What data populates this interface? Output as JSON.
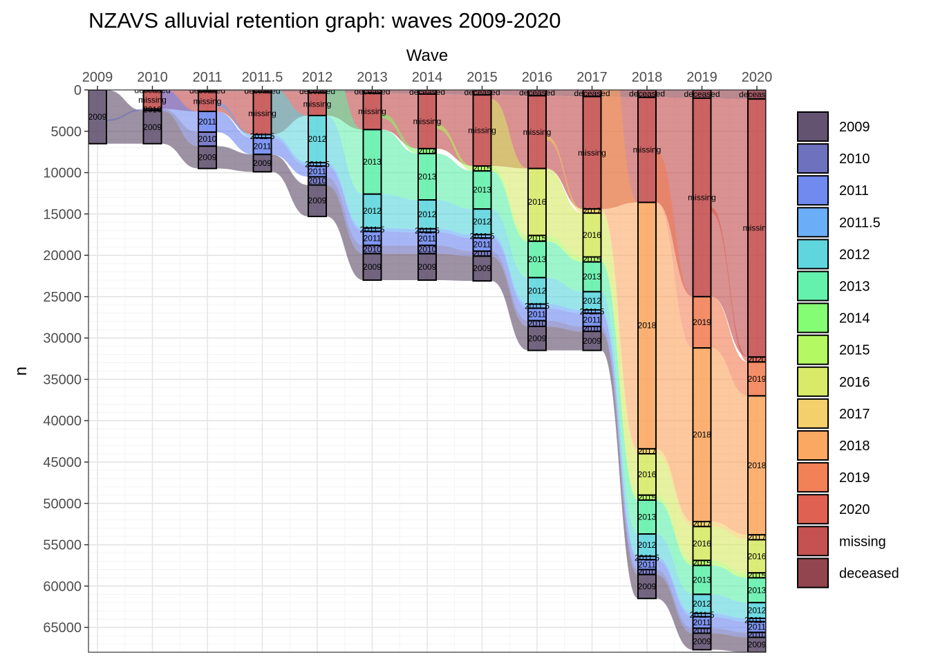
{
  "chart_data": {
    "type": "alluvial",
    "title": "NZAVS alluvial retention graph: waves 2009-2020",
    "xlabel": "Wave",
    "ylabel": "n",
    "x_axis_position": "top",
    "y_reversed": true,
    "ylim": [
      0,
      68000
    ],
    "yticks": [
      0,
      5000,
      10000,
      15000,
      20000,
      25000,
      30000,
      35000,
      40000,
      45000,
      50000,
      55000,
      60000,
      65000
    ],
    "ytick_labels": [
      "0",
      "5000",
      "10000",
      "15000",
      "20000",
      "25000",
      "30000",
      "35000",
      "40000",
      "45000",
      "50000",
      "55000",
      "60000",
      "65000"
    ],
    "grid": true,
    "legend_position": "right",
    "waves": [
      "2009",
      "2010",
      "2011",
      "2011.5",
      "2012",
      "2013",
      "2014",
      "2015",
      "2016",
      "2017",
      "2018",
      "2019",
      "2020"
    ],
    "legend": [
      {
        "name": "2009",
        "color": "#5b4a68"
      },
      {
        "name": "2010",
        "color": "#6569bb"
      },
      {
        "name": "2011",
        "color": "#6984ee"
      },
      {
        "name": "2011.5",
        "color": "#62aaf7"
      },
      {
        "name": "2012",
        "color": "#56d4dc"
      },
      {
        "name": "2013",
        "color": "#5cf0a8"
      },
      {
        "name": "2014",
        "color": "#7dfc6c"
      },
      {
        "name": "2015",
        "color": "#b0f85c"
      },
      {
        "name": "2016",
        "color": "#d6e960"
      },
      {
        "name": "2017",
        "color": "#f2ce63"
      },
      {
        "name": "2018",
        "color": "#fba35b"
      },
      {
        "name": "2019",
        "color": "#f27a4e"
      },
      {
        "name": "2020",
        "color": "#dd5849"
      },
      {
        "name": "missing",
        "color": "#c24848"
      },
      {
        "name": "deceased",
        "color": "#8c3b44"
      }
    ],
    "strata": [
      {
        "wave": "2009",
        "segments": [
          {
            "label": "2009",
            "from": 0,
            "to": 6500
          }
        ]
      },
      {
        "wave": "2010",
        "segments": [
          {
            "label": "deceased",
            "from": 0,
            "to": 100
          },
          {
            "label": "missing",
            "from": 100,
            "to": 2300
          },
          {
            "label": "2010",
            "from": 2300,
            "to": 2500
          },
          {
            "label": "2009",
            "from": 2500,
            "to": 6500
          }
        ]
      },
      {
        "wave": "2011",
        "segments": [
          {
            "label": "deceased",
            "from": 0,
            "to": 200
          },
          {
            "label": "missing",
            "from": 200,
            "to": 2600
          },
          {
            "label": "2011",
            "from": 2600,
            "to": 5100
          },
          {
            "label": "2010",
            "from": 5100,
            "to": 6800
          },
          {
            "label": "2009",
            "from": 6800,
            "to": 9500
          }
        ]
      },
      {
        "wave": "2011.5",
        "segments": [
          {
            "label": "deceased",
            "from": 0,
            "to": 250
          },
          {
            "label": "missing",
            "from": 250,
            "to": 5400
          },
          {
            "label": "2011.5",
            "from": 5400,
            "to": 5800
          },
          {
            "label": "2011",
            "from": 5800,
            "to": 7800
          },
          {
            "label": "2009",
            "from": 7800,
            "to": 9900
          }
        ]
      },
      {
        "wave": "2012",
        "segments": [
          {
            "label": "deceased",
            "from": 0,
            "to": 300
          },
          {
            "label": "missing",
            "from": 300,
            "to": 3100
          },
          {
            "label": "2012",
            "from": 3100,
            "to": 8800
          },
          {
            "label": "2011.5",
            "from": 8800,
            "to": 9200
          },
          {
            "label": "2011",
            "from": 9200,
            "to": 10500
          },
          {
            "label": "2010",
            "from": 10500,
            "to": 11500
          },
          {
            "label": "2009",
            "from": 11500,
            "to": 15300
          }
        ]
      },
      {
        "wave": "2013",
        "segments": [
          {
            "label": "deceased",
            "from": 0,
            "to": 400
          },
          {
            "label": "missing",
            "from": 400,
            "to": 4800
          },
          {
            "label": "2013",
            "from": 4800,
            "to": 12600
          },
          {
            "label": "2012",
            "from": 12600,
            "to": 16700
          },
          {
            "label": "2011.5",
            "from": 16700,
            "to": 17100
          },
          {
            "label": "2011",
            "from": 17100,
            "to": 18800
          },
          {
            "label": "2010",
            "from": 18800,
            "to": 19800
          },
          {
            "label": "2009",
            "from": 19800,
            "to": 23000
          }
        ]
      },
      {
        "wave": "2014",
        "segments": [
          {
            "label": "deceased",
            "from": 0,
            "to": 500
          },
          {
            "label": "missing",
            "from": 500,
            "to": 7100
          },
          {
            "label": "2014",
            "from": 7100,
            "to": 7700
          },
          {
            "label": "2013",
            "from": 7700,
            "to": 13300
          },
          {
            "label": "2012",
            "from": 13300,
            "to": 16800
          },
          {
            "label": "2011.5",
            "from": 16800,
            "to": 17200
          },
          {
            "label": "2011",
            "from": 17200,
            "to": 18800
          },
          {
            "label": "2010",
            "from": 18800,
            "to": 19800
          },
          {
            "label": "2009",
            "from": 19800,
            "to": 23000
          }
        ]
      },
      {
        "wave": "2015",
        "segments": [
          {
            "label": "deceased",
            "from": 0,
            "to": 600
          },
          {
            "label": "missing",
            "from": 600,
            "to": 9200
          },
          {
            "label": "2015",
            "from": 9200,
            "to": 9800
          },
          {
            "label": "2013",
            "from": 9800,
            "to": 14400
          },
          {
            "label": "2012",
            "from": 14400,
            "to": 17500
          },
          {
            "label": "2011.5",
            "from": 17500,
            "to": 17900
          },
          {
            "label": "2011",
            "from": 17900,
            "to": 19500
          },
          {
            "label": "2010",
            "from": 19500,
            "to": 20100
          },
          {
            "label": "2009",
            "from": 20100,
            "to": 23100
          }
        ]
      },
      {
        "wave": "2016",
        "segments": [
          {
            "label": "deceased",
            "from": 0,
            "to": 700
          },
          {
            "label": "missing",
            "from": 700,
            "to": 9500
          },
          {
            "label": "2016",
            "from": 9500,
            "to": 17600
          },
          {
            "label": "2015",
            "from": 17600,
            "to": 18300
          },
          {
            "label": "2013",
            "from": 18300,
            "to": 22700
          },
          {
            "label": "2012",
            "from": 22700,
            "to": 25900
          },
          {
            "label": "2011.5",
            "from": 25900,
            "to": 26400
          },
          {
            "label": "2011",
            "from": 26400,
            "to": 27900
          },
          {
            "label": "2010",
            "from": 27900,
            "to": 28600
          },
          {
            "label": "2009",
            "from": 28600,
            "to": 31500
          }
        ]
      },
      {
        "wave": "2017",
        "segments": [
          {
            "label": "deceased",
            "from": 0,
            "to": 800
          },
          {
            "label": "missing",
            "from": 800,
            "to": 14400
          },
          {
            "label": "2017",
            "from": 14400,
            "to": 14900
          },
          {
            "label": "2016",
            "from": 14900,
            "to": 20200
          },
          {
            "label": "2015",
            "from": 20200,
            "to": 20800
          },
          {
            "label": "2013",
            "from": 20800,
            "to": 24400
          },
          {
            "label": "2012",
            "from": 24400,
            "to": 26600
          },
          {
            "label": "2011.5",
            "from": 26600,
            "to": 27000
          },
          {
            "label": "2011",
            "from": 27000,
            "to": 28600
          },
          {
            "label": "2010",
            "from": 28600,
            "to": 29200
          },
          {
            "label": "2009",
            "from": 29200,
            "to": 31500
          }
        ]
      },
      {
        "wave": "2018",
        "segments": [
          {
            "label": "deceased",
            "from": 0,
            "to": 900
          },
          {
            "label": "missing",
            "from": 900,
            "to": 13600
          },
          {
            "label": "2018",
            "from": 13600,
            "to": 43400
          },
          {
            "label": "2017",
            "from": 43400,
            "to": 44000
          },
          {
            "label": "2016",
            "from": 44000,
            "to": 49000
          },
          {
            "label": "2015",
            "from": 49000,
            "to": 49600
          },
          {
            "label": "2013",
            "from": 49600,
            "to": 53700
          },
          {
            "label": "2012",
            "from": 53700,
            "to": 56400
          },
          {
            "label": "2011.5",
            "from": 56400,
            "to": 56800
          },
          {
            "label": "2011",
            "from": 56800,
            "to": 58000
          },
          {
            "label": "2010",
            "from": 58000,
            "to": 58600
          },
          {
            "label": "2009",
            "from": 58600,
            "to": 61500
          }
        ]
      },
      {
        "wave": "2019",
        "segments": [
          {
            "label": "deceased",
            "from": 0,
            "to": 1000
          },
          {
            "label": "missing",
            "from": 1000,
            "to": 25000
          },
          {
            "label": "2019",
            "from": 25000,
            "to": 31200
          },
          {
            "label": "2018",
            "from": 31200,
            "to": 52200
          },
          {
            "label": "2017",
            "from": 52200,
            "to": 52800
          },
          {
            "label": "2016",
            "from": 52800,
            "to": 56900
          },
          {
            "label": "2015",
            "from": 56900,
            "to": 57500
          },
          {
            "label": "2013",
            "from": 57500,
            "to": 61000
          },
          {
            "label": "2012",
            "from": 61000,
            "to": 63300
          },
          {
            "label": "2011.5",
            "from": 63300,
            "to": 63700
          },
          {
            "label": "2011",
            "from": 63700,
            "to": 65100
          },
          {
            "label": "2010",
            "from": 65100,
            "to": 65700
          },
          {
            "label": "2009",
            "from": 65700,
            "to": 67700
          }
        ]
      },
      {
        "wave": "2020",
        "segments": [
          {
            "label": "deceased",
            "from": 0,
            "to": 1100
          },
          {
            "label": "missing",
            "from": 1100,
            "to": 32300
          },
          {
            "label": "2020",
            "from": 32300,
            "to": 32900
          },
          {
            "label": "2019",
            "from": 32900,
            "to": 37000
          },
          {
            "label": "2018",
            "from": 37000,
            "to": 53800
          },
          {
            "label": "2017",
            "from": 53800,
            "to": 54400
          },
          {
            "label": "2016",
            "from": 54400,
            "to": 58400
          },
          {
            "label": "2015",
            "from": 58400,
            "to": 59000
          },
          {
            "label": "2013",
            "from": 59000,
            "to": 62000
          },
          {
            "label": "2012",
            "from": 62000,
            "to": 63900
          },
          {
            "label": "2011.5",
            "from": 63900,
            "to": 64300
          },
          {
            "label": "2011",
            "from": 64300,
            "to": 65600
          },
          {
            "label": "2010",
            "from": 65600,
            "to": 66200
          },
          {
            "label": "2009",
            "from": 66200,
            "to": 68000
          }
        ]
      }
    ]
  }
}
